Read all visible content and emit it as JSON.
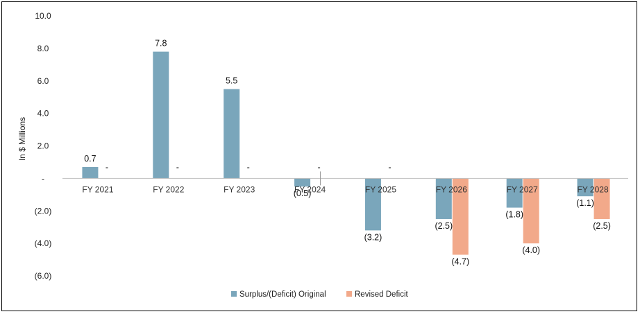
{
  "chart_data": {
    "type": "bar",
    "ylabel": "In $ Millions",
    "ylim": [
      -6,
      10
    ],
    "yticks": [
      {
        "value": 10,
        "label": "10.0"
      },
      {
        "value": 8,
        "label": "8.0"
      },
      {
        "value": 6,
        "label": "6.0"
      },
      {
        "value": 4,
        "label": "4.0"
      },
      {
        "value": 2,
        "label": "2.0"
      },
      {
        "value": 0,
        "label": "-"
      },
      {
        "value": -2,
        "label": "(2.0)"
      },
      {
        "value": -4,
        "label": "(4.0)"
      },
      {
        "value": -6,
        "label": "(6.0)"
      }
    ],
    "categories": [
      "FY 2021",
      "FY 2022",
      "FY 2023",
      "FY 2024",
      "FY 2025",
      "FY 2026",
      "FY 2027",
      "FY 2028"
    ],
    "series": [
      {
        "name": "Surplus/(Deficit) Original",
        "color": "#7aa6bb",
        "values": [
          0.7,
          7.8,
          5.5,
          -0.5,
          -3.2,
          -2.5,
          -1.8,
          -1.1
        ],
        "labels": [
          "0.7",
          "7.8",
          "5.5",
          "(0.5)",
          "(3.2)",
          "(2.5)",
          "(1.8)",
          "(1.1)"
        ]
      },
      {
        "name": "Revised Deficit",
        "color": "#f2a98a",
        "values": [
          0,
          0,
          0,
          0,
          0,
          -4.7,
          -4.0,
          -2.5
        ],
        "labels": [
          "-",
          "-",
          "-",
          "-",
          "-",
          "(4.7)",
          "(4.0)",
          "(2.5)"
        ]
      }
    ],
    "legend_position": "bottom-center",
    "grid": false
  }
}
